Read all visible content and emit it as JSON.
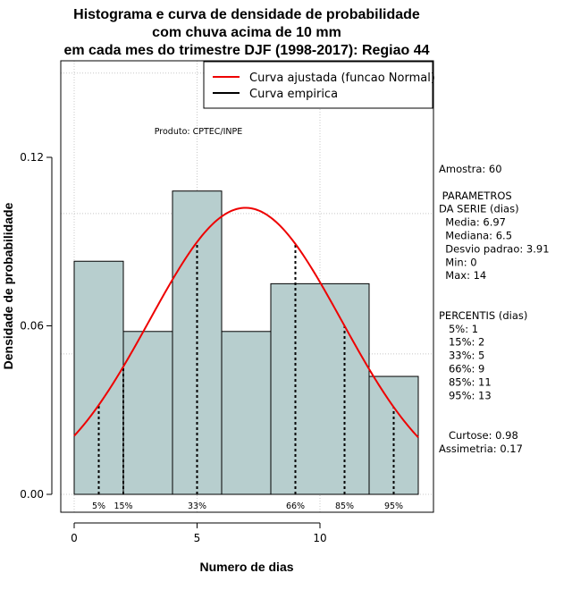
{
  "chart_data": {
    "type": "histogram",
    "title": [
      "Histograma e curva de densidade de probabilidade",
      "com chuva acima de 10 mm",
      "em cada mes do trimestre DJF (1998-2017): Regiao 44"
    ],
    "xlabel": "Numero de dias",
    "ylabel": "Densidade de probabilidade",
    "xlim": [
      -1,
      14.5
    ],
    "ylim": [
      0,
      0.157
    ],
    "x_ticks": [
      0,
      5,
      10
    ],
    "y_ticks": [
      0.0,
      0.06,
      0.12
    ],
    "y_tick_labels": [
      "0.00",
      "0.06",
      "0.12"
    ],
    "grid": true,
    "bins": [
      {
        "x0": 0,
        "x1": 2,
        "density": 0.083
      },
      {
        "x0": 2,
        "x1": 4,
        "density": 0.058
      },
      {
        "x0": 4,
        "x1": 6,
        "density": 0.108
      },
      {
        "x0": 6,
        "x1": 8,
        "density": 0.058
      },
      {
        "x0": 8,
        "x1": 12,
        "density": 0.075
      },
      {
        "x0": 12,
        "x1": 14,
        "density": 0.042
      }
    ],
    "bar_color": "#b7cece",
    "normal_curve": {
      "mean": 6.97,
      "sd": 3.91,
      "x_from": 0,
      "x_to": 14,
      "color": "#ee0000"
    },
    "percentiles": [
      {
        "label": "5%",
        "x": 1
      },
      {
        "label": "15%",
        "x": 2
      },
      {
        "label": "33%",
        "x": 5
      },
      {
        "label": "66%",
        "x": 9
      },
      {
        "label": "85%",
        "x": 11
      },
      {
        "label": "95%",
        "x": 13
      }
    ],
    "legend": {
      "position": "top-right",
      "entries": [
        {
          "label": "Curva ajustada (funcao Normal)",
          "color": "#ee0000"
        },
        {
          "label": "Curva empirica",
          "color": "#000000"
        }
      ]
    },
    "annotation": "Produto: CPTEC/INPE",
    "side_text": [
      "Amostra: 60",
      "",
      " PARAMETROS",
      "DA SERIE (dias)",
      "  Media: 6.97",
      "  Mediana: 6.5",
      "  Desvio padrao: 3.91",
      "  Min: 0",
      "  Max: 14",
      "",
      "",
      "PERCENTIS (dias)",
      "   5%: 1",
      "   15%: 2",
      "   33%: 5",
      "   66%: 9",
      "   85%: 11",
      "   95%: 13",
      "",
      "",
      "   Curtose: 0.98",
      "Assimetria: 0.17"
    ]
  }
}
